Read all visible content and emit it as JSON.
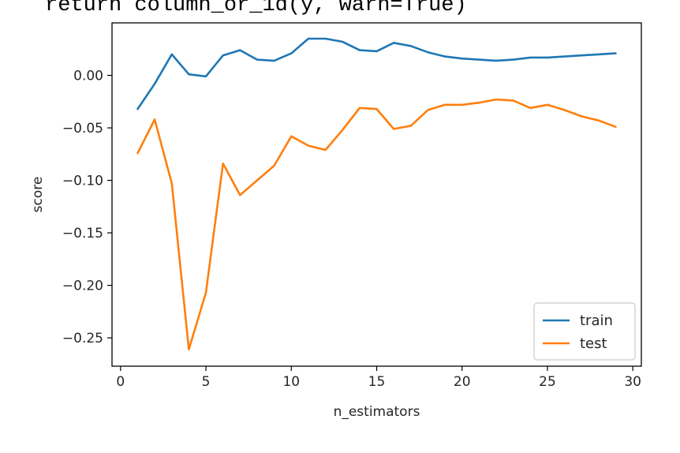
{
  "output": {
    "code_line": "return column_or_1d(y, warn=True)"
  },
  "chart_data": {
    "type": "line",
    "title": "",
    "xlabel": "n_estimators",
    "ylabel": "score",
    "xlim": [
      -0.5,
      30.5
    ],
    "ylim": [
      -0.277,
      0.05
    ],
    "xticks": [
      0,
      5,
      10,
      15,
      20,
      25,
      30
    ],
    "xtick_labels": [
      "0",
      "5",
      "10",
      "15",
      "20",
      "25",
      "30"
    ],
    "yticks": [
      0.0,
      -0.05,
      -0.1,
      -0.15,
      -0.2,
      -0.25
    ],
    "ytick_labels": [
      "0.00",
      "−0.05",
      "−0.10",
      "−0.15",
      "−0.20",
      "−0.25"
    ],
    "grid": false,
    "legend_position": "bottom-right",
    "x": [
      1,
      2,
      3,
      4,
      5,
      6,
      7,
      8,
      9,
      10,
      11,
      12,
      13,
      14,
      15,
      16,
      17,
      18,
      19,
      20,
      21,
      22,
      23,
      24,
      25,
      26,
      27,
      28,
      29
    ],
    "series": [
      {
        "name": "train",
        "color": "#1f77b4",
        "values": [
          -0.032,
          -0.008,
          0.02,
          0.001,
          -0.001,
          0.019,
          0.024,
          0.015,
          0.014,
          0.021,
          0.035,
          0.035,
          0.032,
          0.024,
          0.023,
          0.031,
          0.028,
          0.022,
          0.018,
          0.016,
          0.015,
          0.014,
          0.015,
          0.017,
          0.017,
          0.018,
          0.019,
          0.02,
          0.021
        ]
      },
      {
        "name": "test",
        "color": "#ff7f0e",
        "values": [
          -0.074,
          -0.042,
          -0.103,
          -0.261,
          -0.207,
          -0.084,
          -0.114,
          -0.1,
          -0.086,
          -0.058,
          -0.067,
          -0.071,
          -0.052,
          -0.031,
          -0.032,
          -0.051,
          -0.048,
          -0.033,
          -0.028,
          -0.028,
          -0.026,
          -0.023,
          -0.024,
          -0.031,
          -0.028,
          -0.033,
          -0.039,
          -0.043,
          -0.049
        ]
      }
    ]
  }
}
